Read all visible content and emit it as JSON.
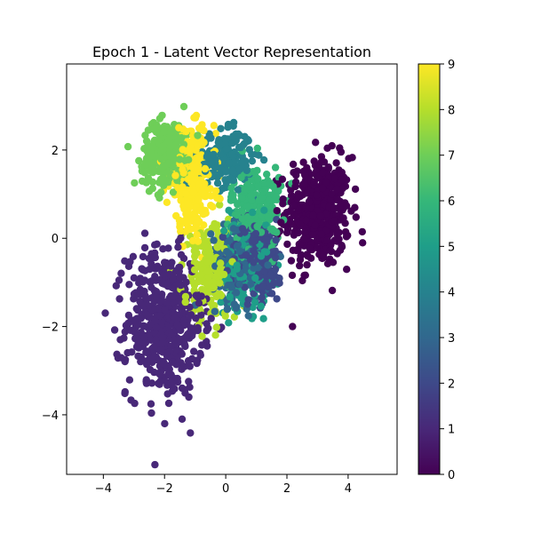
{
  "chart_data": {
    "type": "scatter",
    "title": "Epoch 1 - Latent Vector Representation",
    "xlabel": "",
    "ylabel": "",
    "xlim": [
      -5.2,
      5.6
    ],
    "ylim": [
      -5.35,
      3.95
    ],
    "xticks": [
      -4,
      -2,
      0,
      2,
      4
    ],
    "yticks": [
      -4,
      -2,
      0,
      2
    ],
    "grid": false,
    "colorbar": {
      "label": "",
      "range": [
        0,
        9
      ],
      "ticks": [
        0,
        1,
        2,
        3,
        4,
        5,
        6,
        7,
        8,
        9
      ],
      "colormap": "viridis"
    },
    "clusters": [
      {
        "label": 0,
        "center": [
          3.0,
          0.6
        ],
        "spread": [
          0.85,
          1.0
        ],
        "count": 460
      },
      {
        "label": 1,
        "center": [
          -2.0,
          -1.9
        ],
        "spread": [
          1.0,
          1.35
        ],
        "count": 520
      },
      {
        "label": 2,
        "center": [
          1.0,
          -0.5
        ],
        "spread": [
          0.75,
          0.75
        ],
        "count": 220
      },
      {
        "label": 3,
        "center": [
          0.4,
          -0.6
        ],
        "spread": [
          0.7,
          0.7
        ],
        "count": 160
      },
      {
        "label": 4,
        "center": [
          0.0,
          1.8
        ],
        "spread": [
          0.7,
          0.5
        ],
        "count": 200
      },
      {
        "label": 5,
        "center": [
          0.6,
          -0.6
        ],
        "spread": [
          0.7,
          0.8
        ],
        "count": 200
      },
      {
        "label": 6,
        "center": [
          1.0,
          0.7
        ],
        "spread": [
          0.65,
          0.75
        ],
        "count": 230
      },
      {
        "label": 7,
        "center": [
          -1.9,
          1.9
        ],
        "spread": [
          0.65,
          0.6
        ],
        "count": 320
      },
      {
        "label": 8,
        "center": [
          -0.5,
          -0.8
        ],
        "spread": [
          0.7,
          0.9
        ],
        "count": 200
      },
      {
        "label": 9,
        "center": [
          -1.1,
          1.3
        ],
        "spread": [
          0.6,
          0.9
        ],
        "count": 320
      }
    ]
  }
}
